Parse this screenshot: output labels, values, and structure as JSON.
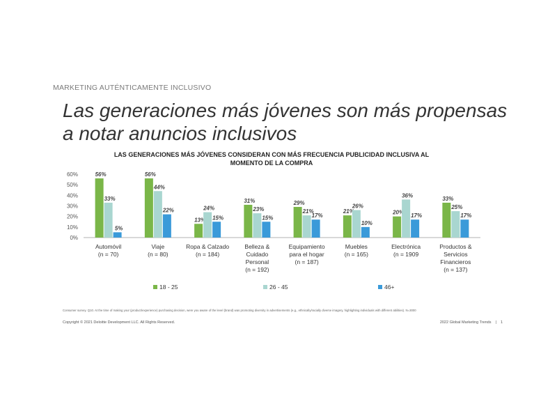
{
  "eyebrow": "MARKETING AUTÉNTICAMENTE INCLUSIVO",
  "headline": "Las generaciones más jóvenes son más propensas a notar anuncios inclusivos",
  "footnote": "Consumer survey. Q10. At the time of making your (product/experience) purchasing decision, were you aware of the level (brand) was promoting diversity in advertisements (e.g., ethnically/racially diverse imagery, highlighting individuals with different abilities). N=3000",
  "footer": {
    "copyright": "Copyright © 2021 Deloitte Development LLC. All Rights Reserved.",
    "publication": "2022 Global Marketing Trends",
    "separator": "|",
    "page": "1"
  },
  "colors": {
    "g1825": "#7ab648",
    "g2645": "#a9d6d0",
    "g46": "#3a9ad9"
  },
  "chart_data": {
    "type": "bar",
    "title": "LAS GENERACIONES MÁS JÓVENES CONSIDERAN CON MÁS FRECUENCIA PUBLICIDAD INCLUSIVA AL MOMENTO DE LA COMPRA",
    "categories": [
      [
        "Automóvil",
        "(n = 70)"
      ],
      [
        "Viaje",
        "(n = 80)"
      ],
      [
        "Ropa & Calzado",
        "(n = 184)"
      ],
      [
        "Belleza &",
        "Cuidado",
        "Personal",
        "(n = 192)"
      ],
      [
        "Equipamiento",
        "para el hogar",
        "(n = 187)"
      ],
      [
        "Muebles",
        "(n = 165)"
      ],
      [
        "Electrónica",
        "(n = 1909"
      ],
      [
        "Productos &",
        "Servicios",
        "Financieros",
        "(n = 137)"
      ]
    ],
    "series": [
      {
        "name": "18 - 25",
        "color": "#7ab648",
        "values": [
          56,
          56,
          13,
          31,
          29,
          21,
          20,
          33
        ]
      },
      {
        "name": "26 - 45",
        "color": "#a9d6d0",
        "values": [
          33,
          44,
          24,
          23,
          21,
          26,
          36,
          25
        ]
      },
      {
        "name": "46+",
        "color": "#3a9ad9",
        "values": [
          5,
          22,
          15,
          15,
          17,
          10,
          17,
          17
        ]
      }
    ],
    "ylim": [
      0,
      60
    ],
    "yticks": [
      "0%",
      "10%",
      "20%",
      "30%",
      "40%",
      "50%",
      "60%"
    ],
    "value_suffix": "%",
    "grid": false,
    "legend": "bottom"
  }
}
